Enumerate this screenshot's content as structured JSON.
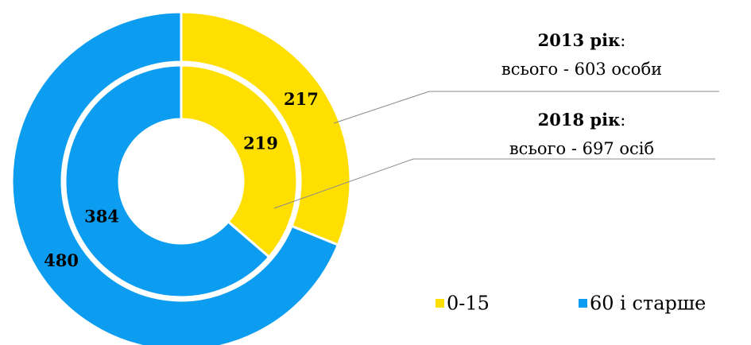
{
  "chart_data": {
    "type": "donut",
    "categories": [
      "0-15",
      "60 і старше"
    ],
    "colors": [
      "#FFDF00",
      "#0D9DF0"
    ],
    "series": [
      {
        "values": [
          217,
          480
        ]
      },
      {
        "values": [
          219,
          384
        ]
      }
    ],
    "annotations": [
      {
        "year": "2013 рік",
        "sep": ":",
        "total": "всього - 603 особи"
      },
      {
        "year": "2018 рік",
        "sep": ":",
        "total": "всього - 697 осіб"
      }
    ]
  }
}
